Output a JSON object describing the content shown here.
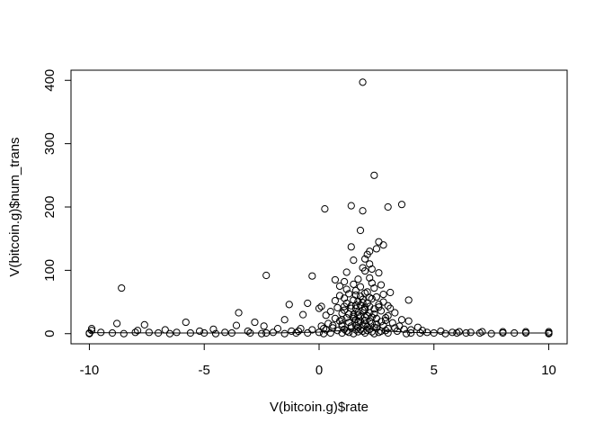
{
  "chart_data": {
    "type": "scatter",
    "title": "",
    "xlabel": "V(bitcoin.g)$rate",
    "ylabel": "V(bitcoin.g)$num_trans",
    "xlim": [
      -10.8,
      10.8
    ],
    "ylim": [
      -16,
      416
    ],
    "xticks": [
      -10,
      -5,
      0,
      5,
      10
    ],
    "yticks": [
      0,
      100,
      200,
      300,
      400
    ],
    "x_tick_labels": [
      "-10",
      "-5",
      "0",
      "5",
      "10"
    ],
    "y_tick_labels": [
      "0",
      "100",
      "200",
      "300",
      "400"
    ],
    "grid": false,
    "legend": "none",
    "marker": "open-circle",
    "colors": {
      "points": "#000000",
      "axes": "#000000",
      "background": "#ffffff"
    },
    "trend_line": [
      [
        -10,
        1.5
      ],
      [
        -6,
        1
      ],
      [
        -2,
        1
      ],
      [
        0,
        2.5
      ],
      [
        1,
        5
      ],
      [
        1.5,
        8
      ],
      [
        2,
        9
      ],
      [
        2.5,
        7
      ],
      [
        3,
        4
      ],
      [
        4,
        2
      ],
      [
        6,
        1
      ],
      [
        10,
        1
      ]
    ],
    "points": [
      [
        1.9,
        397
      ],
      [
        2.4,
        250
      ],
      [
        3.6,
        204
      ],
      [
        1.4,
        202
      ],
      [
        3.0,
        200
      ],
      [
        0.25,
        197
      ],
      [
        1.9,
        194
      ],
      [
        1.8,
        163
      ],
      [
        2.6,
        145
      ],
      [
        2.8,
        140
      ],
      [
        1.4,
        137
      ],
      [
        2.5,
        134
      ],
      [
        2.2,
        130
      ],
      [
        2.1,
        125
      ],
      [
        2.0,
        118
      ],
      [
        1.5,
        116
      ],
      [
        2.2,
        110
      ],
      [
        1.9,
        104
      ],
      [
        2.3,
        102
      ],
      [
        2.0,
        99
      ],
      [
        1.2,
        97
      ],
      [
        2.6,
        96
      ],
      [
        -2.3,
        92
      ],
      [
        -0.3,
        91
      ],
      [
        2.2,
        88
      ],
      [
        1.7,
        86
      ],
      [
        0.7,
        85
      ],
      [
        1.1,
        82
      ],
      [
        2.3,
        80
      ],
      [
        1.5,
        78
      ],
      [
        2.7,
        77
      ],
      [
        0.9,
        75
      ],
      [
        1.8,
        74
      ],
      [
        -8.6,
        72
      ],
      [
        2.4,
        72
      ],
      [
        1.2,
        70
      ],
      [
        1.6,
        68
      ],
      [
        2.1,
        66
      ],
      [
        3.1,
        65
      ],
      [
        1.3,
        63
      ],
      [
        2.8,
        62
      ],
      [
        0.9,
        60
      ],
      [
        1.8,
        59
      ],
      [
        2.5,
        58
      ],
      [
        1.1,
        56
      ],
      [
        3.9,
        53
      ],
      [
        2.3,
        55
      ],
      [
        1.5,
        53
      ],
      [
        0.7,
        52
      ],
      [
        -0.5,
        48
      ],
      [
        -1.3,
        46
      ],
      [
        2.8,
        50
      ],
      [
        1.9,
        49
      ],
      [
        1.2,
        48
      ],
      [
        2.6,
        46
      ],
      [
        3.0,
        44
      ],
      [
        0.1,
        43
      ],
      [
        1.6,
        45
      ],
      [
        2.2,
        43
      ],
      [
        0.8,
        41
      ],
      [
        0.0,
        40
      ],
      [
        1.4,
        40
      ],
      [
        3.1,
        40
      ],
      [
        2.0,
        38
      ],
      [
        1.1,
        37
      ],
      [
        2.7,
        36
      ],
      [
        -3.5,
        33
      ],
      [
        0.5,
        35
      ],
      [
        3.3,
        33
      ],
      [
        1.7,
        34
      ],
      [
        1.0,
        32
      ],
      [
        2.4,
        31
      ],
      [
        -0.7,
        30
      ],
      [
        0.3,
        29
      ],
      [
        1.5,
        30
      ],
      [
        2.1,
        28
      ],
      [
        3.0,
        28
      ],
      [
        1.8,
        27
      ],
      [
        2.9,
        25
      ],
      [
        1.2,
        25
      ],
      [
        0.7,
        24
      ],
      [
        2.5,
        24
      ],
      [
        -1.5,
        22
      ],
      [
        3.6,
        22
      ],
      [
        3.9,
        20
      ],
      [
        1.6,
        22
      ],
      [
        2.0,
        21
      ],
      [
        0.9,
        20
      ],
      [
        2.7,
        19
      ],
      [
        -2.8,
        18
      ],
      [
        -5.8,
        18
      ],
      [
        -8.8,
        16
      ],
      [
        -7.6,
        14
      ],
      [
        1.3,
        18
      ],
      [
        3.2,
        17
      ],
      [
        0.4,
        16
      ],
      [
        2.3,
        16
      ],
      [
        1.0,
        15
      ],
      [
        1.9,
        14
      ],
      [
        -3.6,
        13
      ],
      [
        -2.4,
        12
      ],
      [
        2.8,
        13
      ],
      [
        0.1,
        12
      ],
      [
        1.4,
        12
      ],
      [
        3.5,
        12
      ],
      [
        2.1,
        11
      ],
      [
        4.3,
        10
      ],
      [
        1.7,
        10
      ],
      [
        0.6,
        9
      ],
      [
        2.5,
        9
      ],
      [
        -0.8,
        8
      ],
      [
        -1.8,
        8
      ],
      [
        -4.6,
        7
      ],
      [
        -6.7,
        6
      ],
      [
        -9.9,
        8
      ],
      [
        3.0,
        8
      ],
      [
        1.1,
        7
      ],
      [
        2.2,
        7
      ],
      [
        0.3,
        6
      ],
      [
        4.0,
        6
      ],
      [
        1.6,
        6
      ],
      [
        2.9,
        5
      ],
      [
        -9.9,
        5
      ],
      [
        -7.9,
        5
      ],
      [
        -5.2,
        4
      ],
      [
        -3.1,
        4
      ],
      [
        -1.2,
        4
      ],
      [
        0.8,
        5
      ],
      [
        1.9,
        4
      ],
      [
        3.4,
        4
      ],
      [
        5.3,
        4
      ],
      [
        6.1,
        3
      ],
      [
        7.1,
        3
      ],
      [
        8.0,
        3
      ],
      [
        -8.0,
        2
      ],
      [
        -6.2,
        2
      ],
      [
        -4.1,
        2
      ],
      [
        -2.0,
        2
      ],
      [
        0.0,
        2
      ],
      [
        1.3,
        2
      ],
      [
        2.6,
        2
      ],
      [
        4.7,
        2
      ],
      [
        5.8,
        2
      ],
      [
        6.6,
        2
      ],
      [
        9.0,
        1
      ],
      [
        10.0,
        1
      ],
      [
        10.0,
        3
      ],
      [
        9.0,
        3
      ],
      [
        8.0,
        1
      ],
      [
        7.0,
        1
      ],
      [
        6.0,
        1
      ],
      [
        5.0,
        1
      ],
      [
        4.0,
        1
      ],
      [
        3.0,
        1
      ],
      [
        2.0,
        1
      ],
      [
        1.0,
        1
      ],
      [
        0.5,
        1
      ],
      [
        -0.5,
        1
      ],
      [
        -1.0,
        1
      ],
      [
        -3.0,
        1
      ],
      [
        -5.0,
        1
      ],
      [
        -7.0,
        1
      ],
      [
        -9.0,
        1
      ],
      [
        -10.0,
        1
      ],
      [
        -10.0,
        0
      ],
      [
        10.0,
        0
      ],
      [
        -8.5,
        0
      ],
      [
        -6.5,
        0
      ],
      [
        -4.5,
        0
      ],
      [
        -2.5,
        0
      ],
      [
        -1.5,
        0
      ],
      [
        0.2,
        0
      ],
      [
        1.5,
        0
      ],
      [
        2.4,
        0
      ],
      [
        3.8,
        0
      ],
      [
        5.5,
        0
      ],
      [
        7.5,
        0
      ],
      [
        8.5,
        1
      ],
      [
        6.4,
        1
      ],
      [
        4.4,
        1
      ],
      [
        -9.5,
        2
      ],
      [
        -7.4,
        2
      ],
      [
        -5.6,
        1
      ],
      [
        -3.8,
        1
      ],
      [
        -2.3,
        1
      ],
      [
        1.7,
        3
      ],
      [
        2.3,
        3
      ],
      [
        1.2,
        4
      ],
      [
        2.7,
        4
      ],
      [
        1.8,
        6
      ],
      [
        2.1,
        5
      ],
      [
        1.4,
        9
      ],
      [
        2.4,
        10
      ],
      [
        1.6,
        13
      ],
      [
        2.0,
        16
      ],
      [
        1.8,
        19
      ],
      [
        2.2,
        20
      ],
      [
        1.5,
        24
      ],
      [
        2.0,
        26
      ],
      [
        1.7,
        29
      ],
      [
        1.3,
        31
      ],
      [
        2.2,
        33
      ],
      [
        1.9,
        37
      ],
      [
        1.6,
        40
      ],
      [
        2.4,
        39
      ],
      [
        2.0,
        42
      ],
      [
        1.8,
        45
      ],
      [
        1.4,
        44
      ],
      [
        2.6,
        42
      ],
      [
        1.1,
        43
      ],
      [
        2.1,
        48
      ],
      [
        1.7,
        51
      ],
      [
        1.9,
        54
      ],
      [
        2.2,
        57
      ],
      [
        1.6,
        61
      ],
      [
        2.0,
        64
      ],
      [
        1.7,
        18
      ],
      [
        2.5,
        15
      ],
      [
        1.0,
        12
      ],
      [
        0.6,
        13
      ],
      [
        3.3,
        9
      ],
      [
        3.7,
        7
      ],
      [
        4.5,
        5
      ],
      [
        0.2,
        8
      ],
      [
        -0.3,
        6
      ],
      [
        -0.9,
        4
      ],
      [
        1.5,
        27
      ],
      [
        2.3,
        26
      ],
      [
        1.0,
        22
      ],
      [
        2.9,
        21
      ]
    ]
  }
}
